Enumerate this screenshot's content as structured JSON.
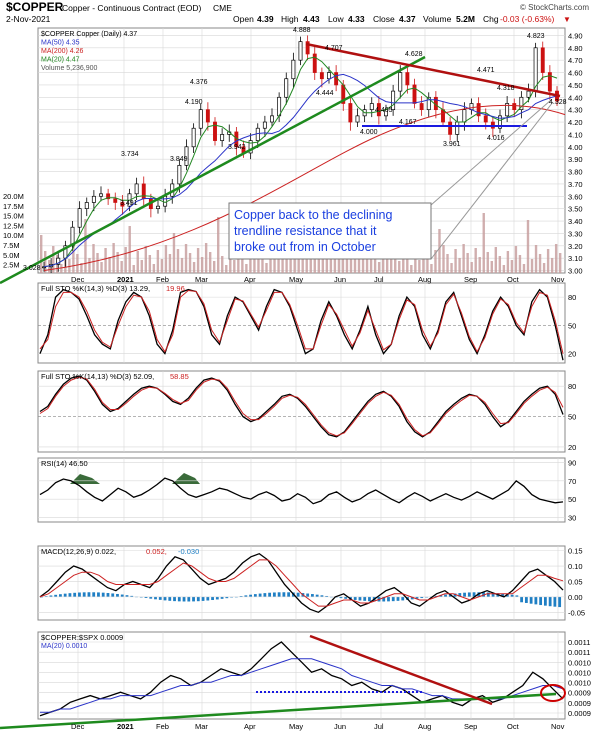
{
  "header": {
    "symbol": "$COPPER",
    "description": "Copper - Continuous Contract (EOD)",
    "exchange": "CME",
    "date": "2-Nov-2021",
    "quote": {
      "open_label": "Open",
      "open": "4.39",
      "high_label": "High",
      "high": "4.43",
      "low_label": "Low",
      "low": "4.33",
      "close_label": "Close",
      "close": "4.37",
      "volume_label": "Volume",
      "volume": "5.2M",
      "chg_label": "Chg",
      "chg": "-0.03 (-0.63%)"
    },
    "brand": "© StockCharts.com"
  },
  "legend_main": [
    {
      "text": "$COPPER Copper (Daily) 4.37",
      "color": "#000000"
    },
    {
      "text": "MA(50) 4.35",
      "color": "#2a33c8"
    },
    {
      "text": "MA(200) 4.26",
      "color": "#cc2222"
    },
    {
      "text": "MA(20) 4.47",
      "color": "#228822"
    },
    {
      "text": "Volume 5,236,900",
      "color": "#555555"
    }
  ],
  "annotation": {
    "lines": [
      "Copper back to the declining",
      "trendline resistance that it",
      "broke out from in October"
    ],
    "color": "#1a3fe0"
  },
  "colors": {
    "up": "#000000",
    "down": "#cc1111",
    "ma50": "#2a33c8",
    "ma200": "#cc2222",
    "ma20": "#228822",
    "trend_green": "#1e8a1e",
    "trend_red": "#b01010",
    "support_blue": "#1a1ae0",
    "volume": "#c8a0a0",
    "grid": "#d8d8d8"
  },
  "chart_data": [
    {
      "type": "candlestick",
      "name": "price",
      "y_ticks": [
        "4.90",
        "4.80",
        "4.70",
        "4.60",
        "4.50",
        "4.40",
        "4.30",
        "4.20",
        "4.10",
        "4.00",
        "3.90",
        "3.80",
        "3.70",
        "3.60",
        "3.50",
        "3.40",
        "3.30",
        "3.20",
        "3.10",
        "3.00"
      ],
      "ylim": [
        2.98,
        4.96
      ],
      "x_labels": [
        "Dec",
        "2021",
        "Feb",
        "Mar",
        "Apr",
        "May",
        "Jun",
        "Jul",
        "Aug",
        "Sep",
        "Oct",
        "Nov"
      ],
      "volume_ticks": [
        "20.0M",
        "17.5M",
        "15.0M",
        "12.5M",
        "10.0M",
        "7.5M",
        "5.0M",
        "2.5M"
      ],
      "callouts": [
        "4.888",
        "4.707",
        "4.628",
        "4.823",
        "4.471",
        "4.444",
        "4.376",
        "4.190",
        "4.318",
        "4.405",
        "4.167",
        "4.000",
        "3.961",
        "4.016",
        "4.328",
        "3.734",
        "3.849",
        "3.942",
        "3.491",
        "3.028"
      ],
      "close_path": [
        3.03,
        3.05,
        3.1,
        3.2,
        3.35,
        3.5,
        3.55,
        3.6,
        3.62,
        3.58,
        3.55,
        3.52,
        3.62,
        3.7,
        3.58,
        3.5,
        3.52,
        3.6,
        3.7,
        3.85,
        4.0,
        4.15,
        4.3,
        4.2,
        4.05,
        4.1,
        4.12,
        4.0,
        3.95,
        4.05,
        4.15,
        4.2,
        4.25,
        4.4,
        4.55,
        4.7,
        4.85,
        4.75,
        4.6,
        4.55,
        4.6,
        4.5,
        4.35,
        4.2,
        4.25,
        4.3,
        4.35,
        4.25,
        4.3,
        4.45,
        4.6,
        4.5,
        4.35,
        4.3,
        4.4,
        4.3,
        4.2,
        4.1,
        4.2,
        4.3,
        4.35,
        4.25,
        4.2,
        4.15,
        4.25,
        4.35,
        4.3,
        4.4,
        4.45,
        4.8,
        4.6,
        4.45,
        4.37
      ]
    },
    {
      "type": "line",
      "name": "full-sto-14-3",
      "title": "Full STO %K(14,3) %D(3) 13.29,",
      "value2": "19.96",
      "y_ticks": [
        "80",
        "50",
        "20"
      ],
      "ylim": [
        10,
        95
      ],
      "series": [
        {
          "name": "%K",
          "color": "#000000",
          "values": [
            20,
            40,
            80,
            88,
            85,
            78,
            60,
            40,
            30,
            25,
            55,
            75,
            85,
            80,
            60,
            30,
            20,
            45,
            85,
            88,
            86,
            70,
            40,
            30,
            60,
            80,
            75,
            60,
            45,
            70,
            88,
            85,
            70,
            45,
            20,
            25,
            55,
            75,
            60,
            40,
            25,
            45,
            70,
            40,
            20,
            30,
            60,
            80,
            70,
            40,
            25,
            45,
            75,
            85,
            60,
            35,
            20,
            40,
            65,
            80,
            70,
            50,
            40,
            75,
            88,
            80,
            50,
            13
          ]
        },
        {
          "name": "%D",
          "color": "#cc2222",
          "values": [
            25,
            35,
            70,
            85,
            85,
            80,
            65,
            45,
            32,
            27,
            50,
            70,
            82,
            80,
            65,
            35,
            22,
            40,
            80,
            87,
            86,
            73,
            45,
            32,
            55,
            78,
            76,
            62,
            48,
            66,
            85,
            85,
            72,
            50,
            25,
            25,
            50,
            72,
            62,
            45,
            28,
            42,
            66,
            45,
            24,
            30,
            56,
            77,
            72,
            45,
            28,
            42,
            72,
            83,
            63,
            38,
            22,
            37,
            62,
            78,
            72,
            53,
            42,
            70,
            85,
            82,
            55,
            20
          ]
        }
      ]
    },
    {
      "type": "line",
      "name": "full-sto-14-13",
      "title": "Full STO %K(14,13) %D(3) 52.09,",
      "value2": "58.85",
      "y_ticks": [
        "80",
        "50",
        "20"
      ],
      "ylim": [
        15,
        95
      ],
      "series": [
        {
          "name": "%K",
          "color": "#000000",
          "values": [
            55,
            60,
            72,
            82,
            88,
            90,
            86,
            75,
            62,
            55,
            58,
            65,
            72,
            78,
            80,
            78,
            72,
            65,
            62,
            68,
            78,
            86,
            88,
            85,
            76,
            62,
            50,
            45,
            48,
            55,
            62,
            70,
            72,
            68,
            60,
            50,
            40,
            32,
            30,
            35,
            45,
            55,
            65,
            72,
            75,
            70,
            60,
            45,
            35,
            30,
            35,
            45,
            55,
            62,
            68,
            72,
            70,
            62,
            50,
            40,
            45,
            55,
            65,
            72,
            78,
            80,
            72,
            52
          ]
        },
        {
          "name": "%D",
          "color": "#cc2222",
          "values": [
            53,
            58,
            70,
            80,
            86,
            89,
            87,
            77,
            64,
            57,
            57,
            63,
            70,
            76,
            79,
            78,
            73,
            67,
            63,
            66,
            76,
            84,
            87,
            86,
            78,
            65,
            53,
            47,
            47,
            53,
            60,
            68,
            71,
            69,
            62,
            52,
            42,
            34,
            31,
            34,
            43,
            53,
            63,
            70,
            74,
            71,
            62,
            48,
            37,
            31,
            34,
            43,
            53,
            60,
            66,
            71,
            70,
            64,
            53,
            43,
            44,
            53,
            63,
            70,
            76,
            79,
            74,
            59
          ]
        }
      ]
    },
    {
      "type": "line",
      "name": "rsi",
      "title": "RSI(14) 46.50",
      "y_ticks": [
        "90",
        "70",
        "50",
        "30"
      ],
      "ylim": [
        25,
        95
      ],
      "series": [
        {
          "name": "RSI",
          "color": "#000000",
          "values": [
            55,
            60,
            68,
            72,
            70,
            65,
            58,
            52,
            48,
            55,
            62,
            58,
            52,
            55,
            60,
            66,
            73,
            70,
            62,
            55,
            52,
            55,
            58,
            62,
            60,
            56,
            52,
            50,
            55,
            58,
            54,
            48,
            50,
            56,
            52,
            45,
            48,
            55,
            58,
            52,
            47,
            50,
            56,
            60,
            55,
            50,
            46,
            52,
            57,
            53,
            48,
            52,
            56,
            52,
            49,
            53,
            58,
            54,
            50,
            55,
            60,
            70,
            64,
            55,
            50,
            48,
            46,
            47
          ]
        }
      ]
    },
    {
      "type": "line",
      "name": "macd",
      "title": "MACD(12,26,9) 0.022,",
      "value2": "0.052,",
      "value3": "-0.030",
      "y_ticks": [
        "0.15",
        "0.10",
        "0.05",
        "0.00",
        "-0.05"
      ],
      "ylim": [
        -0.075,
        0.165
      ],
      "series": [
        {
          "name": "MACD",
          "color": "#000000",
          "values": [
            0.0,
            0.02,
            0.05,
            0.08,
            0.1,
            0.09,
            0.07,
            0.05,
            0.03,
            0.02,
            0.04,
            0.05,
            0.04,
            0.03,
            0.06,
            0.1,
            0.13,
            0.12,
            0.09,
            0.06,
            0.04,
            0.05,
            0.06,
            0.08,
            0.11,
            0.13,
            0.14,
            0.12,
            0.08,
            0.04,
            0.01,
            -0.02,
            -0.04,
            -0.05,
            -0.03,
            0.0,
            0.01,
            -0.01,
            -0.03,
            -0.02,
            0.0,
            0.02,
            0.03,
            0.01,
            -0.02,
            -0.03,
            -0.01,
            0.01,
            0.02,
            0.0,
            -0.02,
            -0.01,
            0.01,
            0.02,
            0.01,
            0.0,
            0.02,
            0.05,
            0.08,
            0.09,
            0.07,
            0.05,
            0.022
          ]
        },
        {
          "name": "Signal",
          "color": "#cc2222",
          "values": [
            0.0,
            0.01,
            0.03,
            0.05,
            0.07,
            0.08,
            0.08,
            0.07,
            0.05,
            0.04,
            0.04,
            0.04,
            0.04,
            0.04,
            0.05,
            0.07,
            0.09,
            0.11,
            0.1,
            0.08,
            0.06,
            0.05,
            0.05,
            0.06,
            0.08,
            0.1,
            0.12,
            0.12,
            0.1,
            0.07,
            0.04,
            0.01,
            -0.01,
            -0.03,
            -0.03,
            -0.02,
            -0.01,
            -0.01,
            -0.02,
            -0.02,
            -0.01,
            0.0,
            0.01,
            0.01,
            0.0,
            -0.01,
            -0.01,
            0.0,
            0.01,
            0.01,
            0.0,
            -0.01,
            0.0,
            0.01,
            0.01,
            0.01,
            0.01,
            0.03,
            0.05,
            0.07,
            0.07,
            0.06,
            0.052
          ]
        }
      ]
    },
    {
      "type": "line",
      "name": "copper-spx-ratio",
      "title": "$COPPER:$SPX 0.0009",
      "legend2": "MA(20) 0.0010",
      "y_ticks": [
        "0.0011",
        "0.0011",
        "0.0010",
        "0.0010",
        "0.0010",
        "0.0009",
        "0.0009",
        "0.0009"
      ],
      "ylim": [
        0.00087,
        0.00113
      ],
      "x_labels": [
        "Dec",
        "2021",
        "Feb",
        "Mar",
        "Apr",
        "May",
        "Jun",
        "Jul",
        "Aug",
        "Sep",
        "Oct",
        "Nov"
      ],
      "series": [
        {
          "name": "ratio",
          "color": "#000000",
          "values": [
            0.00088,
            0.00089,
            0.0009,
            0.00092,
            0.00093,
            0.00094,
            0.00093,
            0.00094,
            0.00095,
            0.00094,
            0.00093,
            0.00095,
            0.00098,
            0.001,
            0.00099,
            0.00097,
            0.00098,
            0.001,
            0.00102,
            0.00101,
            0.001,
            0.00102,
            0.00105,
            0.00108,
            0.0011,
            0.00107,
            0.00104,
            0.00101,
            0.00102,
            0.001,
            0.00099,
            0.00097,
            0.00098,
            0.00096,
            0.00095,
            0.00097,
            0.00096,
            0.00094,
            0.00092,
            0.00093,
            0.00094,
            0.00092,
            0.00091,
            0.00093,
            0.00094,
            0.00092,
            0.00093,
            0.00095,
            0.00097,
            0.00101,
            0.00099,
            0.00096,
            0.00093
          ]
        },
        {
          "name": "MA(20)",
          "color": "#2a33c8",
          "values": [
            0.00089,
            0.00089,
            0.0009,
            0.0009,
            0.00091,
            0.00092,
            0.00093,
            0.00093,
            0.00094,
            0.00094,
            0.00094,
            0.00094,
            0.00095,
            0.00096,
            0.00097,
            0.00097,
            0.00098,
            0.00098,
            0.00099,
            0.001,
            0.001,
            0.00101,
            0.00102,
            0.00103,
            0.00104,
            0.00105,
            0.00105,
            0.00105,
            0.00104,
            0.00103,
            0.00102,
            0.001,
            0.00099,
            0.00098,
            0.00097,
            0.00097,
            0.00096,
            0.00096,
            0.00095,
            0.00094,
            0.00094,
            0.00093,
            0.00093,
            0.00093,
            0.00093,
            0.00093,
            0.00093,
            0.00094,
            0.00095,
            0.00096,
            0.00097,
            0.00097,
            0.00096
          ]
        }
      ]
    }
  ]
}
